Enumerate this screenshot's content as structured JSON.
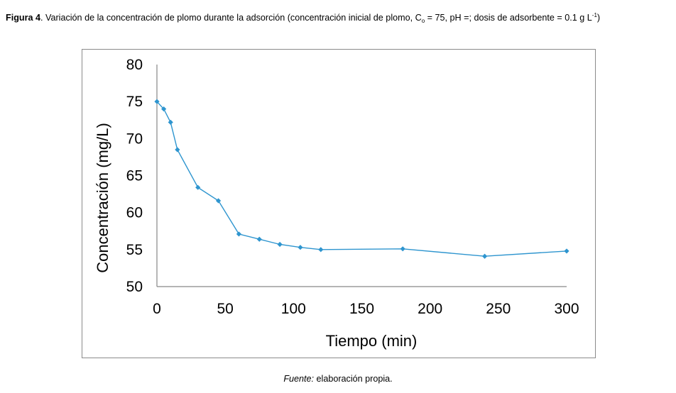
{
  "caption": {
    "label": "Figura 4",
    "text_before_sub": ". Variación de la concentración de plomo durante la adsorción (concentración inicial de plomo, C",
    "subscript": "o",
    "text_after_sub": " = 75, pH =; dosis de adsorbente = 0.1 g L",
    "superscript": "-1",
    "closing": ")"
  },
  "source": {
    "label": "Fuente:",
    "text": " elaboración propia."
  },
  "colors": {
    "series": "#2e95cf",
    "axis": "#878787",
    "frame": "#8a8a8a"
  },
  "chart_data": {
    "type": "line",
    "title": "",
    "xlabel": "Tiempo (min)",
    "ylabel": "Concentración (mg/L)",
    "xlim": [
      0,
      300
    ],
    "ylim": [
      50,
      80
    ],
    "xticks": [
      0,
      50,
      100,
      150,
      200,
      250,
      300
    ],
    "yticks": [
      50,
      55,
      60,
      65,
      70,
      75,
      80
    ],
    "grid": false,
    "legend": "none",
    "series": [
      {
        "name": "Concentración",
        "marker": "diamond",
        "x": [
          0,
          5,
          10,
          15,
          30,
          45,
          60,
          75,
          90,
          105,
          120,
          180,
          240,
          300
        ],
        "y": [
          75.0,
          74.0,
          72.2,
          68.5,
          63.4,
          61.6,
          57.1,
          56.4,
          55.7,
          55.3,
          55.0,
          55.1,
          54.1,
          54.8
        ]
      }
    ]
  }
}
